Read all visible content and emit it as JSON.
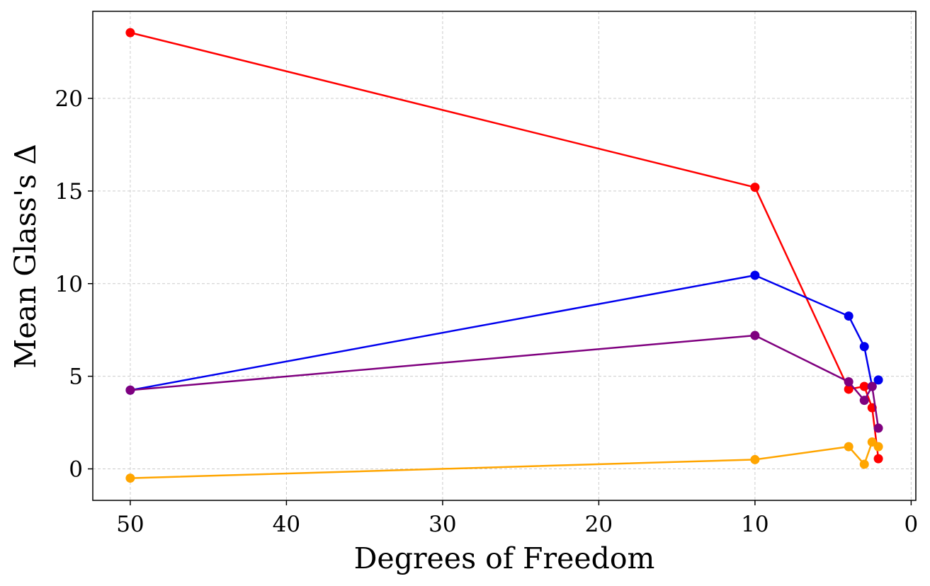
{
  "chart_data": {
    "type": "line",
    "title": "",
    "xlabel": "Degrees of Freedom",
    "ylabel": "Mean Glass's Δ",
    "xlim": [
      52.4,
      -0.3
    ],
    "ylim": [
      -1.7,
      24.7
    ],
    "x_inverted": true,
    "x_ticks": [
      50,
      40,
      30,
      20,
      10,
      0
    ],
    "y_ticks": [
      0,
      5,
      10,
      15,
      20
    ],
    "grid": true,
    "legend": "none",
    "series": [
      {
        "color": "#ff0000",
        "x": [
          50,
          10,
          4,
          3,
          2.5,
          2.1
        ],
        "y": [
          23.55,
          15.2,
          4.3,
          4.45,
          3.3,
          0.55
        ]
      },
      {
        "color": "#0000ee",
        "x": [
          50,
          10,
          4,
          3,
          2.5,
          2.1
        ],
        "y": [
          4.25,
          10.45,
          8.25,
          6.6,
          4.45,
          4.8
        ]
      },
      {
        "color": "#7f007f",
        "x": [
          50,
          10,
          4,
          3,
          2.5,
          2.1
        ],
        "y": [
          4.25,
          7.2,
          4.7,
          3.7,
          4.45,
          2.2
        ]
      },
      {
        "color": "#ffa500",
        "x": [
          50,
          10,
          4,
          3,
          2.5,
          2.1
        ],
        "y": [
          -0.5,
          0.5,
          1.2,
          0.25,
          1.45,
          1.2
        ]
      }
    ]
  }
}
